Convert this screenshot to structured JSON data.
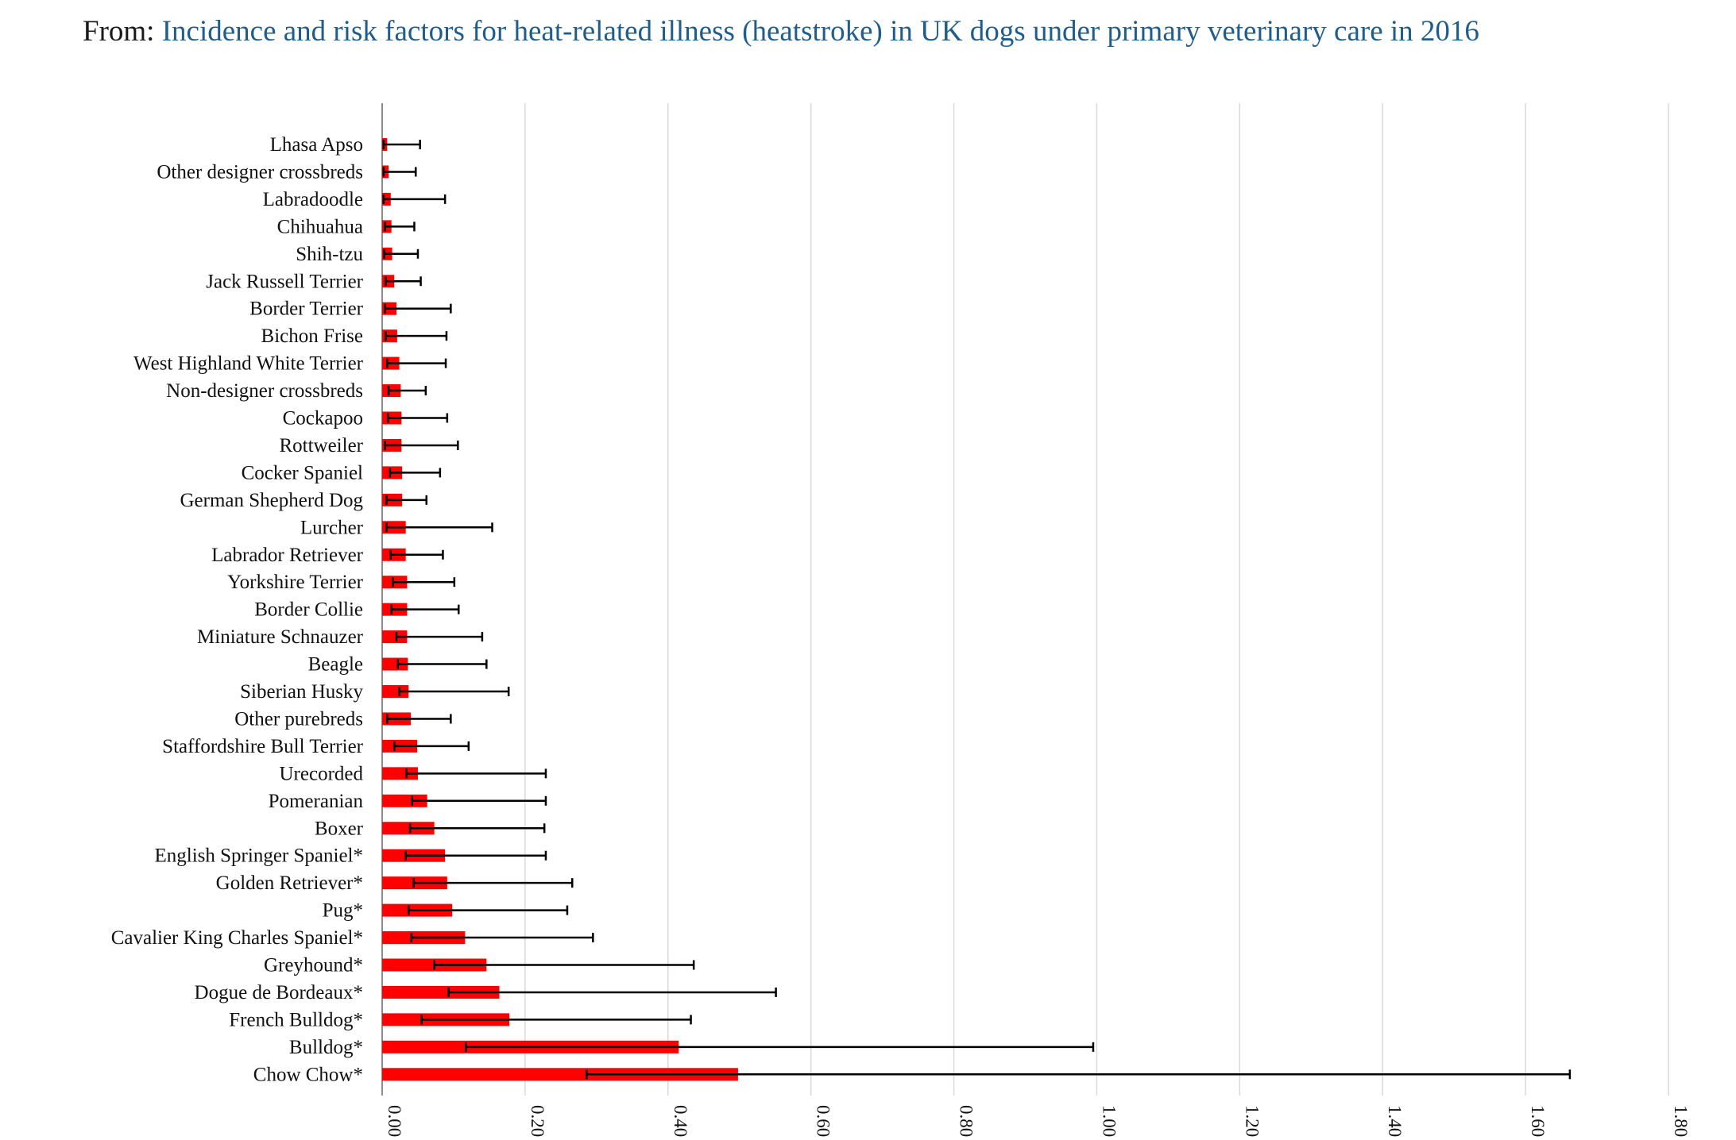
{
  "header": {
    "prefix": "From:",
    "link_text": "Incidence and risk factors for heat-related illness (heatstroke) in UK dogs under primary veterinary care in 2016"
  },
  "chart_data": {
    "type": "bar",
    "orientation": "horizontal",
    "title": "",
    "xlabel": "",
    "ylabel": "",
    "xlim": [
      0,
      1.8
    ],
    "x_ticks": [
      "0.00",
      "0.20",
      "0.40",
      "0.60",
      "0.80",
      "1.00",
      "1.20",
      "1.40",
      "1.60",
      "1.80"
    ],
    "grid": "vertical",
    "bar_color": "#ff0000",
    "error_bar_color": "#000000",
    "categories": [
      "Lhasa Apso",
      "Other designer crossbreds",
      "Labradoodle",
      "Chihuahua",
      "Shih-tzu",
      "Jack Russell Terrier",
      "Border Terrier",
      "Bichon Frise",
      "West Highland White Terrier",
      "Non-designer crossbreds",
      "Cockapoo",
      "Rottweiler",
      "Cocker Spaniel",
      "German Shepherd Dog",
      "Lurcher",
      "Labrador Retriever",
      "Yorkshire Terrier",
      "Border Collie",
      "Miniature Schnauzer",
      "Beagle",
      "Siberian Husky",
      "Other purebreds",
      "Staffordshire Bull Terrier",
      "Urecorded",
      "Pomeranian",
      "Boxer",
      "English Springer Spaniel*",
      "Golden Retriever*",
      "Pug*",
      "Cavalier King Charles Spaniel*",
      "Greyhound*",
      "Dogue de Bordeaux*",
      "French Bulldog*",
      "Bulldog*",
      "Chow Chow*"
    ],
    "values": [
      0.007,
      0.009,
      0.012,
      0.013,
      0.014,
      0.017,
      0.02,
      0.021,
      0.024,
      0.026,
      0.027,
      0.027,
      0.028,
      0.028,
      0.033,
      0.033,
      0.035,
      0.035,
      0.035,
      0.036,
      0.037,
      0.04,
      0.049,
      0.05,
      0.063,
      0.073,
      0.088,
      0.091,
      0.098,
      0.116,
      0.146,
      0.164,
      0.178,
      0.415,
      0.498
    ],
    "ci_lower": [
      0.002,
      0.002,
      0.002,
      0.004,
      0.003,
      0.005,
      0.004,
      0.005,
      0.007,
      0.009,
      0.008,
      0.004,
      0.011,
      0.006,
      0.006,
      0.012,
      0.015,
      0.013,
      0.02,
      0.022,
      0.024,
      0.007,
      0.017,
      0.034,
      0.042,
      0.039,
      0.033,
      0.044,
      0.037,
      0.041,
      0.073,
      0.093,
      0.055,
      0.117,
      0.286
    ],
    "ci_upper": [
      0.053,
      0.047,
      0.088,
      0.045,
      0.05,
      0.054,
      0.096,
      0.09,
      0.089,
      0.061,
      0.091,
      0.106,
      0.081,
      0.062,
      0.154,
      0.085,
      0.101,
      0.107,
      0.14,
      0.146,
      0.177,
      0.096,
      0.121,
      0.229,
      0.229,
      0.227,
      0.229,
      0.266,
      0.259,
      0.295,
      0.436,
      0.551,
      0.432,
      0.995,
      1.662
    ]
  }
}
